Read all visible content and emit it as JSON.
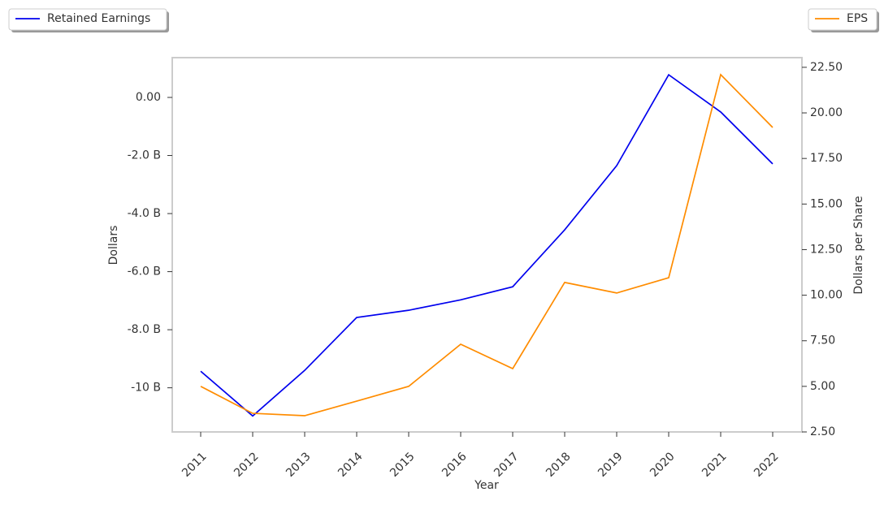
{
  "chart_data": {
    "type": "line",
    "x_label": "Year",
    "y_label": "Dollars",
    "y2_label": "Dollars per Share",
    "categories": [
      "2011",
      "2012",
      "2013",
      "2014",
      "2015",
      "2016",
      "2017",
      "2018",
      "2019",
      "2020",
      "2021",
      "2022"
    ],
    "series": [
      {
        "name": "Retained Earnings",
        "color": "#0000ee",
        "values": [
          -9430000000,
          -10970000000,
          -9400000000,
          -7580000000,
          -7330000000,
          -6970000000,
          -6520000000,
          -4560000000,
          -2350000000,
          780000000,
          -500000000,
          -2290000000
        ]
      },
      {
        "name": "EPS",
        "color": "#ff8c00",
        "axis": "y2",
        "values": [
          5.0,
          3.52,
          3.39,
          4.19,
          5.0,
          7.31,
          5.97,
          10.7,
          10.12,
          10.96,
          22.1,
          19.2
        ]
      }
    ],
    "ylim": [
      -11520000000,
      1370000000
    ],
    "yticks": [
      {
        "value": -10000000000,
        "label": "-10 B"
      },
      {
        "value": -8000000000,
        "label": "-8.0 B"
      },
      {
        "value": -6000000000,
        "label": "-6.0 B"
      },
      {
        "value": -4000000000,
        "label": "-4.0 B"
      },
      {
        "value": -2000000000,
        "label": "-2.0 B"
      },
      {
        "value": 0,
        "label": "0.00"
      }
    ],
    "y2lim": [
      2.5,
      23.03
    ],
    "y2ticks": [
      {
        "value": 2.5,
        "label": "2.50"
      },
      {
        "value": 5,
        "label": "5.00"
      },
      {
        "value": 7.5,
        "label": "7.50"
      },
      {
        "value": 10,
        "label": "10.00"
      },
      {
        "value": 12.5,
        "label": "12.50"
      },
      {
        "value": 15,
        "label": "15.00"
      },
      {
        "value": 17.5,
        "label": "17.50"
      },
      {
        "value": 20,
        "label": "20.00"
      },
      {
        "value": 22.5,
        "label": "22.50"
      }
    ]
  }
}
